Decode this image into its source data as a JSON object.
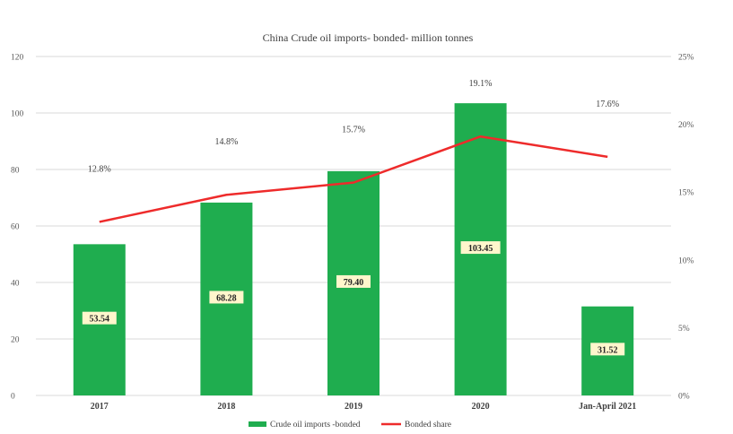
{
  "chart_data": {
    "type": "bar",
    "title": "China Crude oil imports- bonded- million tonnes",
    "categories": [
      "2017",
      "2018",
      "2019",
      "2020",
      "Jan-April 2021"
    ],
    "series": [
      {
        "name": "Crude oil imports -bonded",
        "type": "bar",
        "axis": "left",
        "color": "#1fad4f",
        "values": [
          53.54,
          68.28,
          79.4,
          103.45,
          31.52
        ],
        "labels": [
          "53.54",
          "68.28",
          "79.40",
          "103.45",
          "31.52"
        ]
      },
      {
        "name": "Bonded share",
        "type": "line",
        "axis": "right",
        "color": "#ee2b2b",
        "values": [
          12.8,
          14.8,
          15.7,
          19.1,
          17.6
        ],
        "labels": [
          "12.8%",
          "14.8%",
          "15.7%",
          "19.1%",
          "17.6%"
        ]
      }
    ],
    "y_left": {
      "ylim": [
        0,
        120
      ],
      "ticks": [
        0,
        20,
        40,
        60,
        80,
        100,
        120
      ],
      "tick_labels": [
        "0",
        "20",
        "40",
        "60",
        "80",
        "100",
        "120"
      ]
    },
    "y_right": {
      "ylim": [
        0,
        25
      ],
      "ticks": [
        0,
        5,
        10,
        15,
        20,
        25
      ],
      "tick_labels": [
        "0%",
        "5%",
        "10%",
        "15%",
        "20%",
        "25%"
      ]
    },
    "grid": true,
    "legend_position": "bottom",
    "label_box_color": "#fff6cc"
  }
}
